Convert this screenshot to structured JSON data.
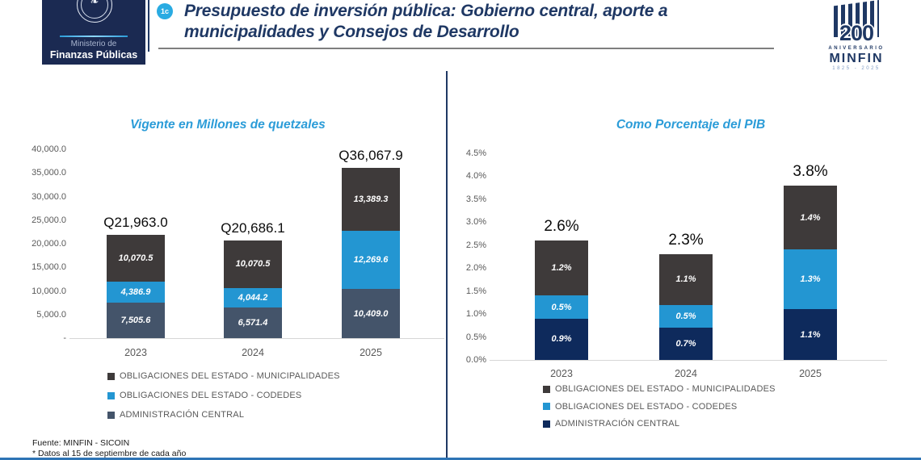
{
  "header": {
    "ministry_logo": {
      "line1": "Ministerio de",
      "line2": "Finanzas Públicas"
    },
    "badge": "1c",
    "title_line1": "Presupuesto de inversión pública: Gobierno central, aporte a",
    "title_line2": "municipalidades y Consejos de Desarrollo",
    "anniversary_logo": {
      "number": "200",
      "word": "ANIVERSARIO",
      "org": "MINFIN",
      "years": "1825 - 2025"
    }
  },
  "footer": {
    "source": "Fuente:  MINFIN - SICOIN",
    "note": "* Datos al 15 de septiembre de cada año"
  },
  "chart_data": [
    {
      "type": "bar",
      "stacked": true,
      "title": "Vigente en Millones de quetzales",
      "categories": [
        "2023",
        "2024",
        "2025"
      ],
      "series": [
        {
          "name": "ADMINISTRACIÓN CENTRAL",
          "color": "#44546A",
          "values": [
            7505.6,
            6571.4,
            10409.0
          ],
          "labels": [
            "7,505.6",
            "6,571.4",
            "10,409.0"
          ]
        },
        {
          "name": "OBLIGACIONES DEL ESTADO - CODEDES",
          "color": "#2396D2",
          "values": [
            4386.9,
            4044.2,
            12269.6
          ],
          "labels": [
            "4,386.9",
            "4,044.2",
            "12,269.6"
          ]
        },
        {
          "name": "OBLIGACIONES DEL ESTADO - MUNICIPALIDADES",
          "color": "#3E3A3A",
          "values": [
            10070.5,
            10070.5,
            13389.3
          ],
          "labels": [
            "10,070.5",
            "10,070.5",
            "13,389.3"
          ]
        }
      ],
      "totals": [
        "Q21,963.0",
        "Q20,686.1",
        "Q36,067.9"
      ],
      "y_ticks": [
        "40,000.0",
        "35,000.0",
        "30,000.0",
        "25,000.0",
        "20,000.0",
        "15,000.0",
        "10,000.0",
        "5,000.0",
        "-"
      ],
      "ylim": [
        0,
        40000
      ],
      "grid": false,
      "legend_position": "bottom-left",
      "legend": [
        {
          "label": "OBLIGACIONES DEL ESTADO - MUNICIPALIDADES",
          "color": "#3E3A3A"
        },
        {
          "label": "OBLIGACIONES DEL ESTADO - CODEDES",
          "color": "#2396D2"
        },
        {
          "label": "ADMINISTRACIÓN CENTRAL",
          "color": "#44546A"
        }
      ]
    },
    {
      "type": "bar",
      "stacked": true,
      "title": "Como Porcentaje del PIB",
      "categories": [
        "2023",
        "2024",
        "2025"
      ],
      "series": [
        {
          "name": "ADMINISTRACIÓN CENTRAL",
          "color": "#0E2A5C",
          "values": [
            0.9,
            0.7,
            1.1
          ],
          "labels": [
            "0.9%",
            "0.7%",
            "1.1%"
          ]
        },
        {
          "name": "OBLIGACIONES DEL ESTADO - CODEDES",
          "color": "#2396D2",
          "values": [
            0.5,
            0.5,
            1.3
          ],
          "labels": [
            "0.5%",
            "0.5%",
            "1.3%"
          ]
        },
        {
          "name": "OBLIGACIONES DEL ESTADO - MUNICIPALIDADES",
          "color": "#3E3A3A",
          "values": [
            1.2,
            1.1,
            1.4
          ],
          "labels": [
            "1.2%",
            "1.1%",
            "1.4%"
          ]
        }
      ],
      "totals": [
        "2.6%",
        "2.3%",
        "3.8%"
      ],
      "y_ticks": [
        "4.5%",
        "4.0%",
        "3.5%",
        "3.0%",
        "2.5%",
        "2.0%",
        "1.5%",
        "1.0%",
        "0.5%",
        "0.0%"
      ],
      "ylim": [
        0,
        4.5
      ],
      "grid": false,
      "legend_position": "bottom-left",
      "legend": [
        {
          "label": "OBLIGACIONES DEL ESTADO - MUNICIPALIDADES",
          "color": "#3E3A3A"
        },
        {
          "label": "OBLIGACIONES DEL ESTADO - CODEDES",
          "color": "#2396D2"
        },
        {
          "label": "ADMINISTRACIÓN CENTRAL",
          "color": "#0E2A5C"
        }
      ]
    }
  ]
}
